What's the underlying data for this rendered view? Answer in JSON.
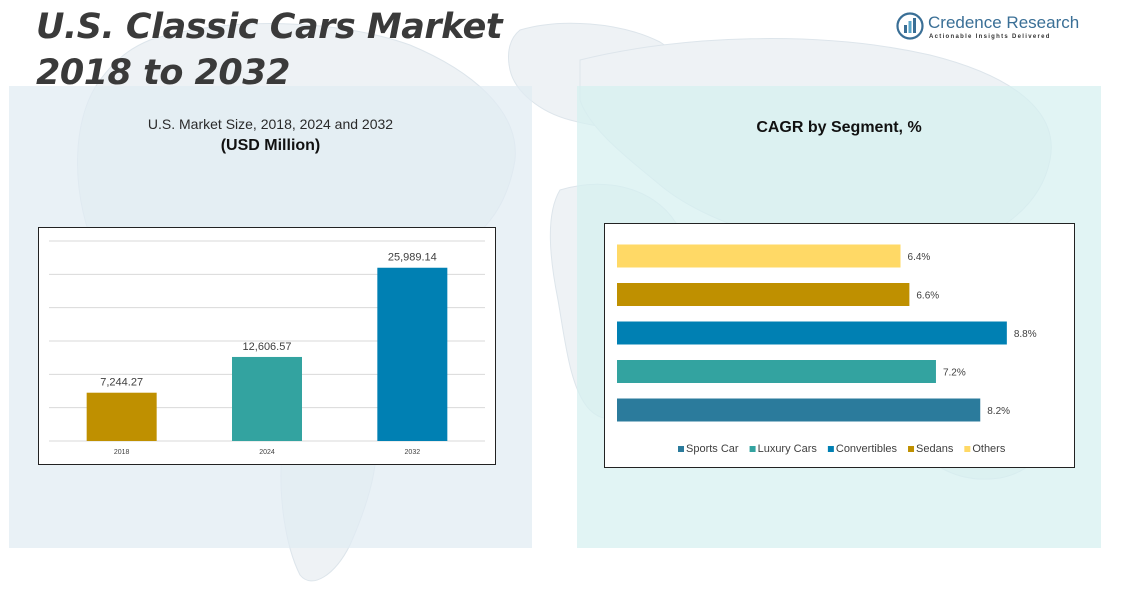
{
  "header": {
    "title": "U.S. Classic Cars Market 2018 to 2032",
    "brand_name": "Credence Research",
    "brand_tagline": "Actionable Insights Delivered"
  },
  "left_panel": {
    "subtitle": "U.S. Market Size, 2018, 2024 and 2032",
    "unit": "(USD Million)"
  },
  "right_panel": {
    "title": "CAGR by Segment, %"
  },
  "colors": {
    "title": "#3a3a3a",
    "brand": "#3a6f96",
    "panel_left": "#e1ecf2",
    "panel_right": "#d6f0f0"
  },
  "chart_data": [
    {
      "type": "bar",
      "title": "U.S. Market Size, 2018, 2024 and 2032",
      "ylabel": "(USD Million)",
      "categories": [
        "2018",
        "2024",
        "2032"
      ],
      "values": [
        7244.27,
        12606.57,
        25989.14
      ],
      "value_labels": [
        "7,244.27",
        "12,606.57",
        "25,989.14"
      ],
      "colors": [
        "#bf9000",
        "#33a3a0",
        "#0080b3"
      ],
      "ylim": [
        0,
        30000
      ],
      "grid": true,
      "legend": "none"
    },
    {
      "type": "bar",
      "orientation": "horizontal",
      "title": "CAGR by Segment, %",
      "categories": [
        "Others",
        "Sedans",
        "Convertibles",
        "Luxury Cars",
        "Sports Car"
      ],
      "values": [
        6.4,
        6.6,
        8.8,
        7.2,
        8.2
      ],
      "value_labels": [
        "6.4%",
        "6.6%",
        "8.8%",
        "7.2%",
        "8.2%"
      ],
      "colors": [
        "#ffd966",
        "#bf9000",
        "#0080b3",
        "#33a3a0",
        "#2b7b9c"
      ],
      "legend_order": [
        "Sports Car",
        "Luxury Cars",
        "Convertibles",
        "Sedans",
        "Others"
      ],
      "legend_colors": [
        "#2b7b9c",
        "#33a3a0",
        "#0080b3",
        "#bf9000",
        "#ffd966"
      ],
      "xlim": [
        0,
        10
      ],
      "grid": false,
      "legend": "bottom"
    }
  ]
}
